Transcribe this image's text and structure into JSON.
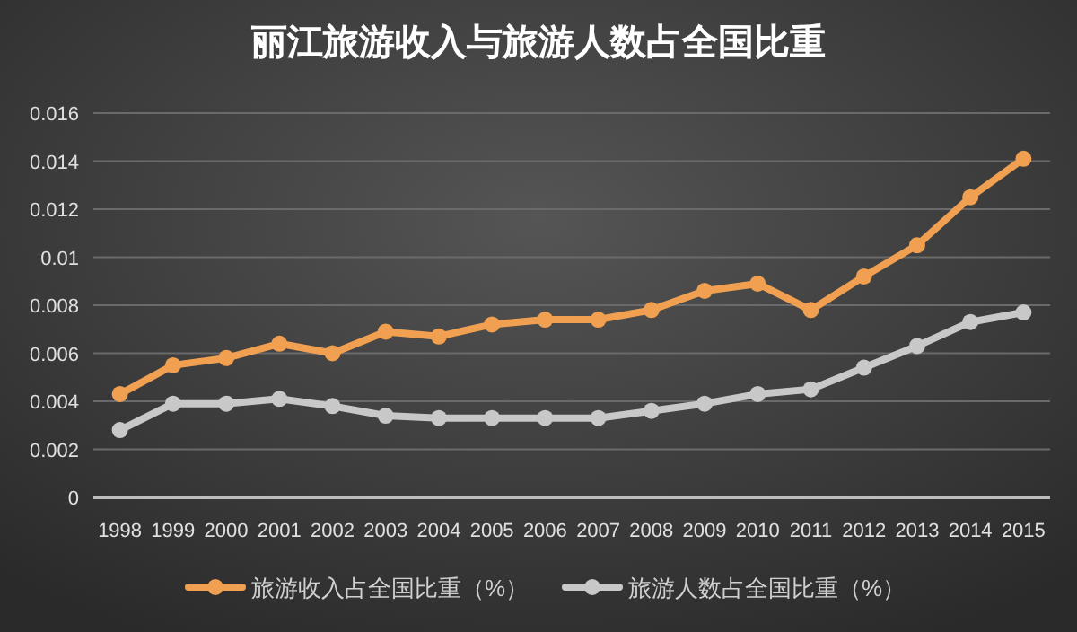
{
  "chart_data": {
    "type": "line",
    "title": "丽江旅游收入与旅游人数占全国比重",
    "categories": [
      "1998",
      "1999",
      "2000",
      "2001",
      "2002",
      "2003",
      "2004",
      "2005",
      "2006",
      "2007",
      "2008",
      "2009",
      "2010",
      "2011",
      "2012",
      "2013",
      "2014",
      "2015"
    ],
    "series": [
      {
        "name": "旅游收入占全国比重（%）",
        "color": "#f0a050",
        "values": [
          0.0043,
          0.0055,
          0.0058,
          0.0064,
          0.006,
          0.0069,
          0.0067,
          0.0072,
          0.0074,
          0.0074,
          0.0078,
          0.0086,
          0.0089,
          0.0078,
          0.0092,
          0.0105,
          0.0125,
          0.0141
        ]
      },
      {
        "name": "旅游人数占全国比重（%）",
        "color": "#c8c8c8",
        "values": [
          0.0028,
          0.0039,
          0.0039,
          0.0041,
          0.0038,
          0.0034,
          0.0033,
          0.0033,
          0.0033,
          0.0033,
          0.0036,
          0.0039,
          0.0043,
          0.0045,
          0.0054,
          0.0063,
          0.0073,
          0.0077
        ]
      }
    ],
    "ylim": [
      0,
      0.016
    ],
    "yticks": [
      0,
      0.002,
      0.004,
      0.006,
      0.008,
      0.01,
      0.012,
      0.014,
      0.016
    ],
    "grid": "y",
    "legend": "bottom",
    "marker": "circle",
    "line_style": "solid"
  }
}
